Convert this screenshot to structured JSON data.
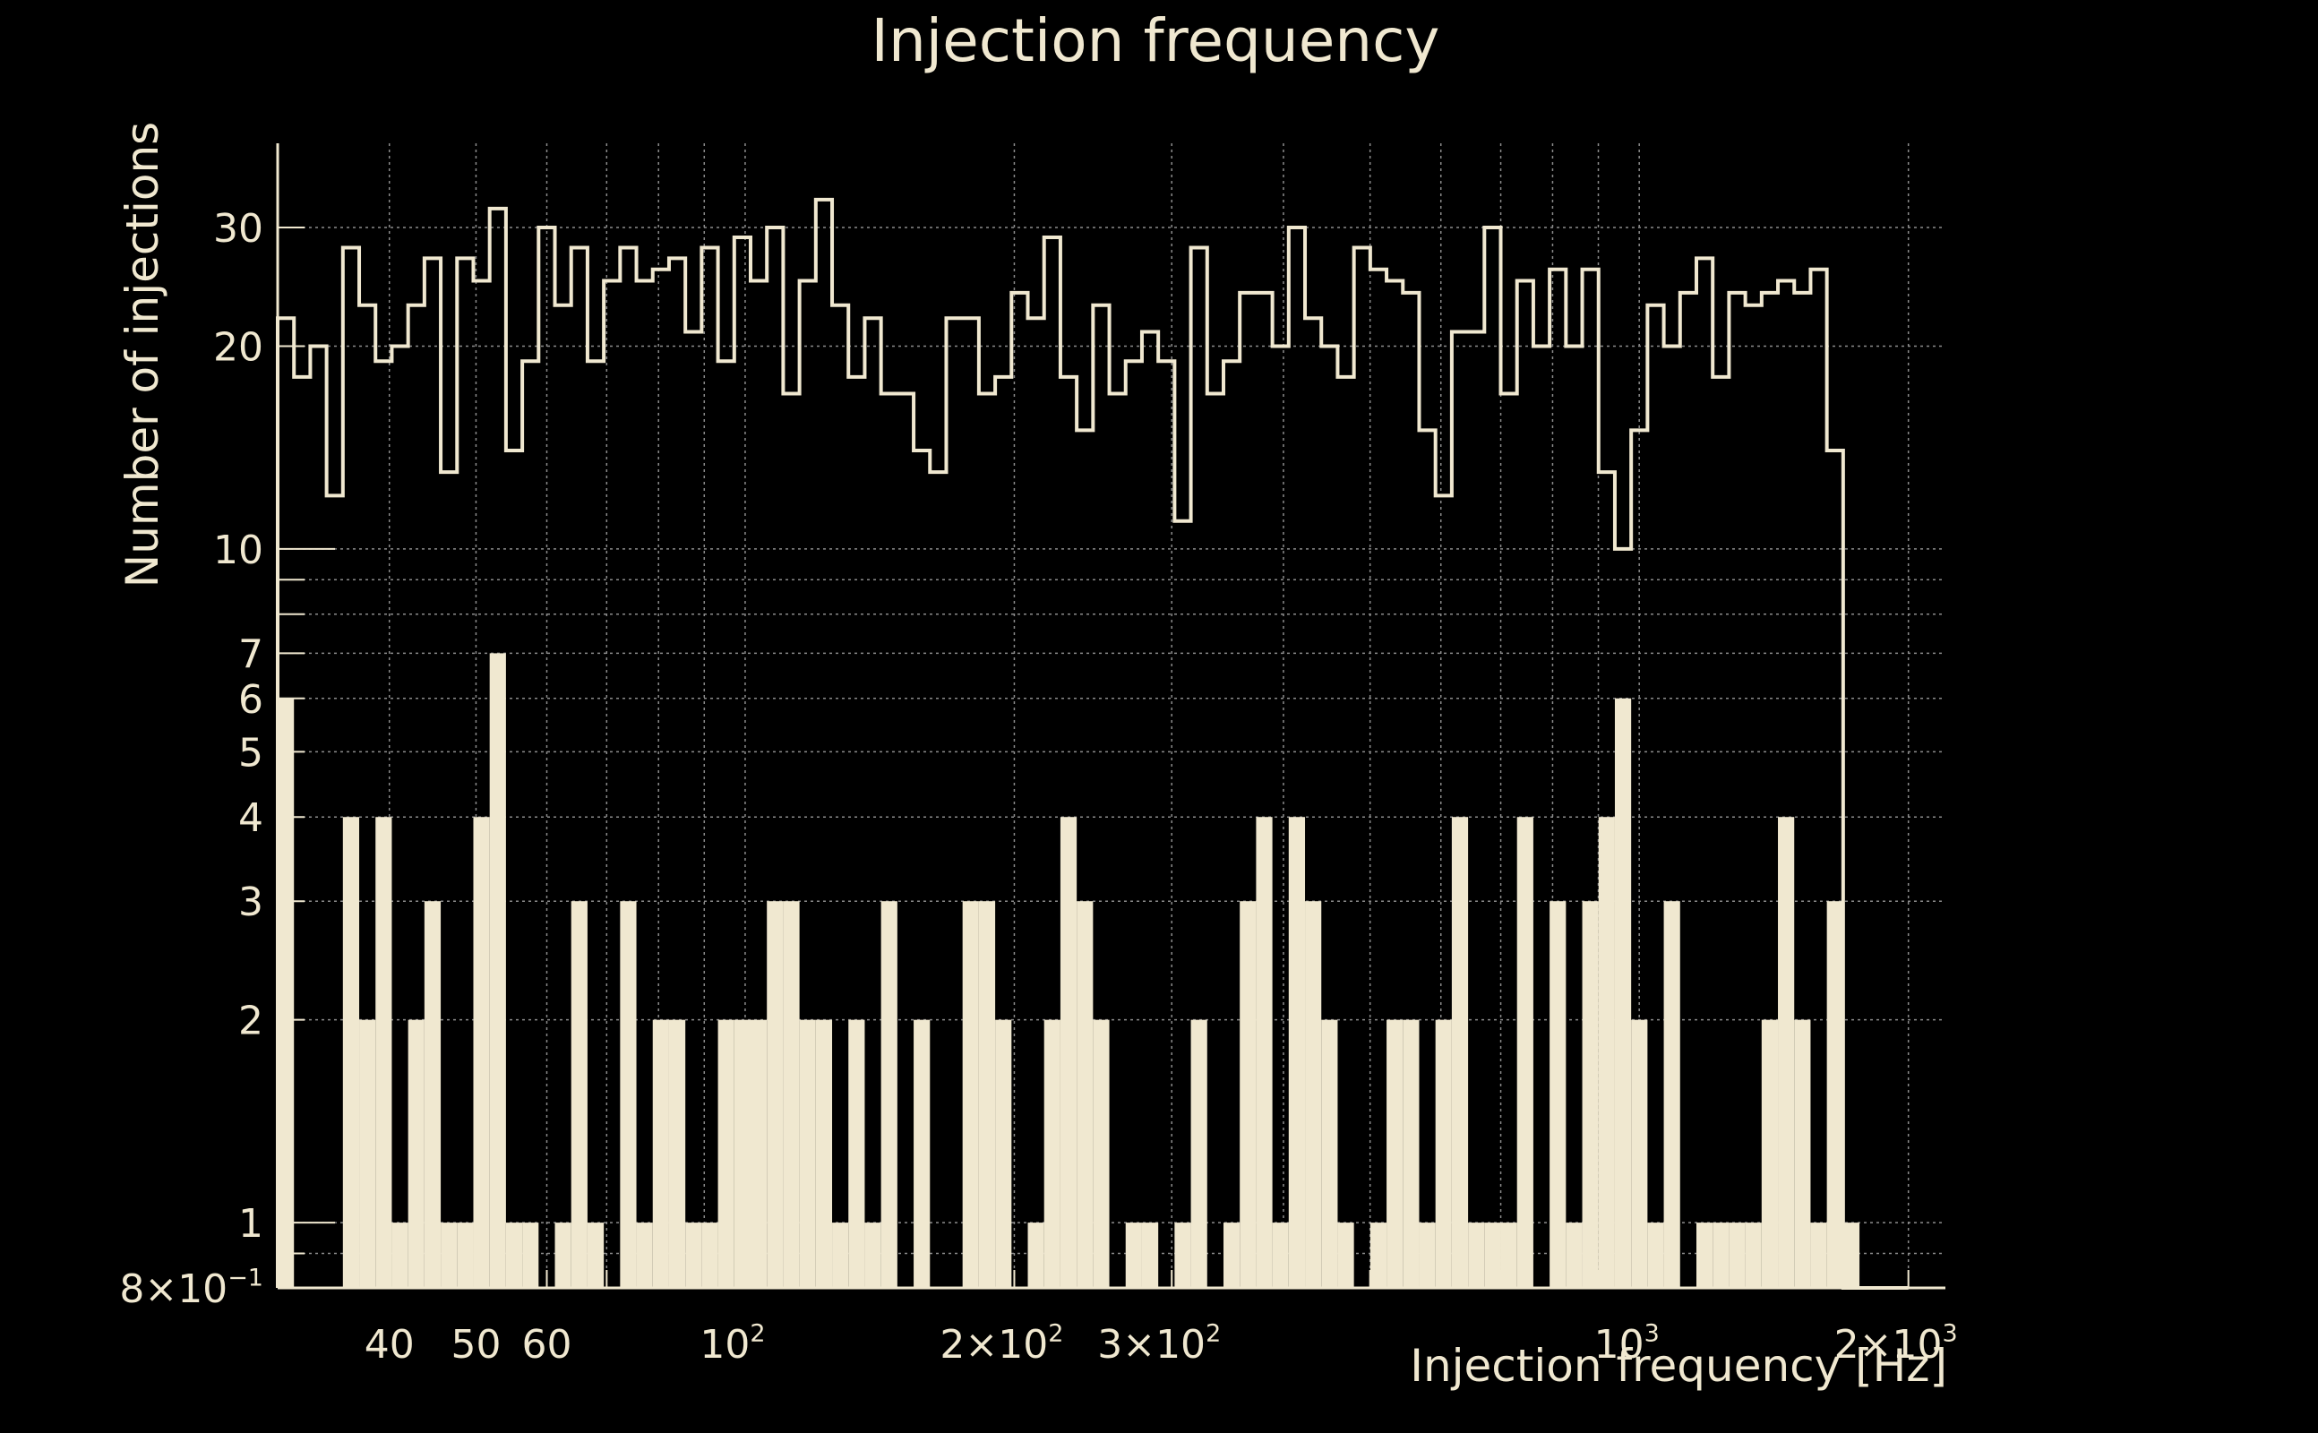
{
  "colors": {
    "background": "#000000",
    "foreground": "#f0e8d0",
    "grid": "#8c8c8c"
  },
  "chart_data": {
    "type": "histogram",
    "title": "Injection frequency",
    "xlabel": "Injection frequency [Hz]",
    "ylabel": "Number of injections",
    "x_scale": "log",
    "y_scale": "log",
    "xlim": [
      30,
      2200
    ],
    "ylim": [
      0.8,
      40
    ],
    "grid": true,
    "x_ticks": [
      {
        "value": 40,
        "label": "40"
      },
      {
        "value": 50,
        "label": "50"
      },
      {
        "value": 60,
        "label": "60"
      },
      {
        "value": 100,
        "label": "10",
        "sup": "2"
      },
      {
        "value": 200,
        "label": "2×10",
        "sup": "2"
      },
      {
        "value": 300,
        "label": "3×10",
        "sup": "2"
      },
      {
        "value": 1000,
        "label": "10",
        "sup": "3"
      },
      {
        "value": 2000,
        "label": "2×10",
        "sup": "3"
      }
    ],
    "y_ticks": [
      {
        "value": 0.8,
        "label": "8×10",
        "sup": "−1"
      },
      {
        "value": 1,
        "label": "1"
      },
      {
        "value": 2,
        "label": "2"
      },
      {
        "value": 3,
        "label": "3"
      },
      {
        "value": 4,
        "label": "4"
      },
      {
        "value": 5,
        "label": "5"
      },
      {
        "value": 6,
        "label": "6"
      },
      {
        "value": 7,
        "label": "7"
      },
      {
        "value": 10,
        "label": "10"
      },
      {
        "value": 20,
        "label": "20"
      },
      {
        "value": 30,
        "label": "30"
      }
    ],
    "bins": {
      "start": 30,
      "end": 2000,
      "count": 100
    },
    "series": [
      {
        "style": "step-outline",
        "values": [
          22,
          18,
          20,
          12,
          28,
          23,
          19,
          20,
          23,
          27,
          13,
          27,
          25,
          32,
          14,
          19,
          30,
          23,
          28,
          19,
          25,
          28,
          25,
          26,
          27,
          21,
          28,
          19,
          29,
          25,
          30,
          17,
          25,
          33,
          23,
          18,
          22,
          17,
          17,
          14,
          13,
          22,
          22,
          17,
          18,
          24,
          22,
          29,
          18,
          15,
          23,
          17,
          19,
          21,
          19,
          11,
          28,
          17,
          19,
          24,
          24,
          20,
          30,
          22,
          20,
          18,
          28,
          26,
          25,
          24,
          15,
          12,
          21,
          21,
          30,
          17,
          25,
          20,
          26,
          20,
          26,
          13,
          10,
          15,
          23,
          20,
          24,
          27,
          18,
          24,
          23,
          24,
          25,
          24,
          26,
          14,
          0,
          0,
          0,
          0
        ]
      },
      {
        "style": "filled",
        "values": [
          6,
          0,
          0,
          0,
          4,
          2,
          4,
          1,
          2,
          3,
          1,
          1,
          4,
          7,
          1,
          1,
          0,
          1,
          3,
          1,
          0,
          3,
          1,
          2,
          2,
          1,
          1,
          2,
          2,
          2,
          3,
          3,
          2,
          2,
          1,
          2,
          1,
          3,
          0,
          2,
          0,
          0,
          3,
          3,
          2,
          0,
          1,
          2,
          4,
          3,
          2,
          0,
          1,
          1,
          0,
          1,
          2,
          0,
          1,
          3,
          4,
          1,
          4,
          3,
          2,
          1,
          0,
          1,
          2,
          2,
          1,
          2,
          4,
          1,
          1,
          1,
          4,
          0,
          3,
          1,
          3,
          4,
          6,
          2,
          1,
          3,
          0,
          1,
          1,
          1,
          1,
          2,
          4,
          2,
          1,
          3,
          1,
          0,
          0,
          0
        ]
      }
    ]
  }
}
